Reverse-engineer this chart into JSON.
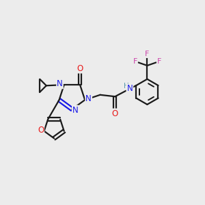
{
  "bg_color": "#ececec",
  "bond_color": "#1a1a1a",
  "N_color": "#1a1ae8",
  "O_color": "#e81a1a",
  "F_color": "#cc44aa",
  "H_color": "#5599aa",
  "figsize": [
    3.0,
    3.0
  ],
  "dpi": 100,
  "xlim": [
    0,
    12
  ],
  "ylim": [
    0,
    10
  ]
}
